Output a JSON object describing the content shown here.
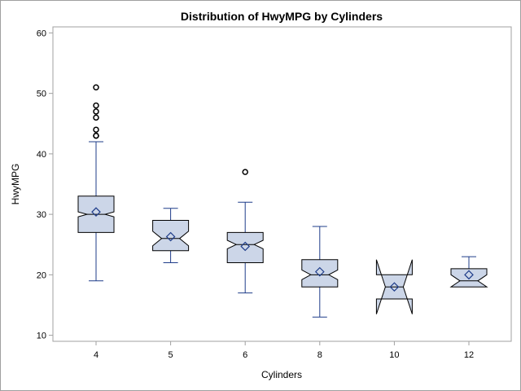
{
  "chart_data": {
    "type": "box",
    "title": "Distribution of HwyMPG by Cylinders",
    "xlabel": "Cylinders",
    "ylabel": "HwyMPG",
    "ylim": [
      9,
      61
    ],
    "yticks": [
      10,
      20,
      30,
      40,
      50,
      60
    ],
    "grid": false,
    "notched": true,
    "colors": {
      "box_fill": "#ccd6e8",
      "box_stroke": "#000000",
      "whisker": "#1f3d8a",
      "mean_marker": "#1f3d8a",
      "outlier": "#000000",
      "axis": "#a0a0a0"
    },
    "categories": [
      "4",
      "5",
      "6",
      "8",
      "10",
      "12"
    ],
    "boxes": [
      {
        "category": "4",
        "min": 19,
        "q1": 27,
        "median": 30,
        "q3": 33,
        "max": 42,
        "mean": 30.4,
        "notch_low": 29.6,
        "notch_high": 30.4,
        "outliers": [
          43,
          43,
          44,
          46,
          47,
          48,
          51
        ]
      },
      {
        "category": "5",
        "min": 22,
        "q1": 24,
        "median": 26,
        "q3": 29,
        "max": 31,
        "mean": 26.3,
        "notch_low": 24.8,
        "notch_high": 27.2,
        "outliers": []
      },
      {
        "category": "6",
        "min": 17,
        "q1": 22,
        "median": 25,
        "q3": 27,
        "max": 32,
        "mean": 24.7,
        "notch_low": 24.3,
        "notch_high": 25.7,
        "outliers": [
          37
        ]
      },
      {
        "category": "8",
        "min": 13,
        "q1": 18,
        "median": 20,
        "q3": 22.5,
        "max": 28,
        "mean": 20.5,
        "notch_low": 19.2,
        "notch_high": 20.8,
        "outliers": []
      },
      {
        "category": "10",
        "min": 16,
        "q1": 16,
        "median": 18,
        "q3": 20,
        "max": 20,
        "mean": 18,
        "notch_low": 13.5,
        "notch_high": 22.5,
        "outliers": []
      },
      {
        "category": "12",
        "min": 18,
        "q1": 18,
        "median": 19,
        "q3": 21,
        "max": 23,
        "mean": 20,
        "notch_low": 18,
        "notch_high": 20,
        "outliers": []
      }
    ]
  }
}
